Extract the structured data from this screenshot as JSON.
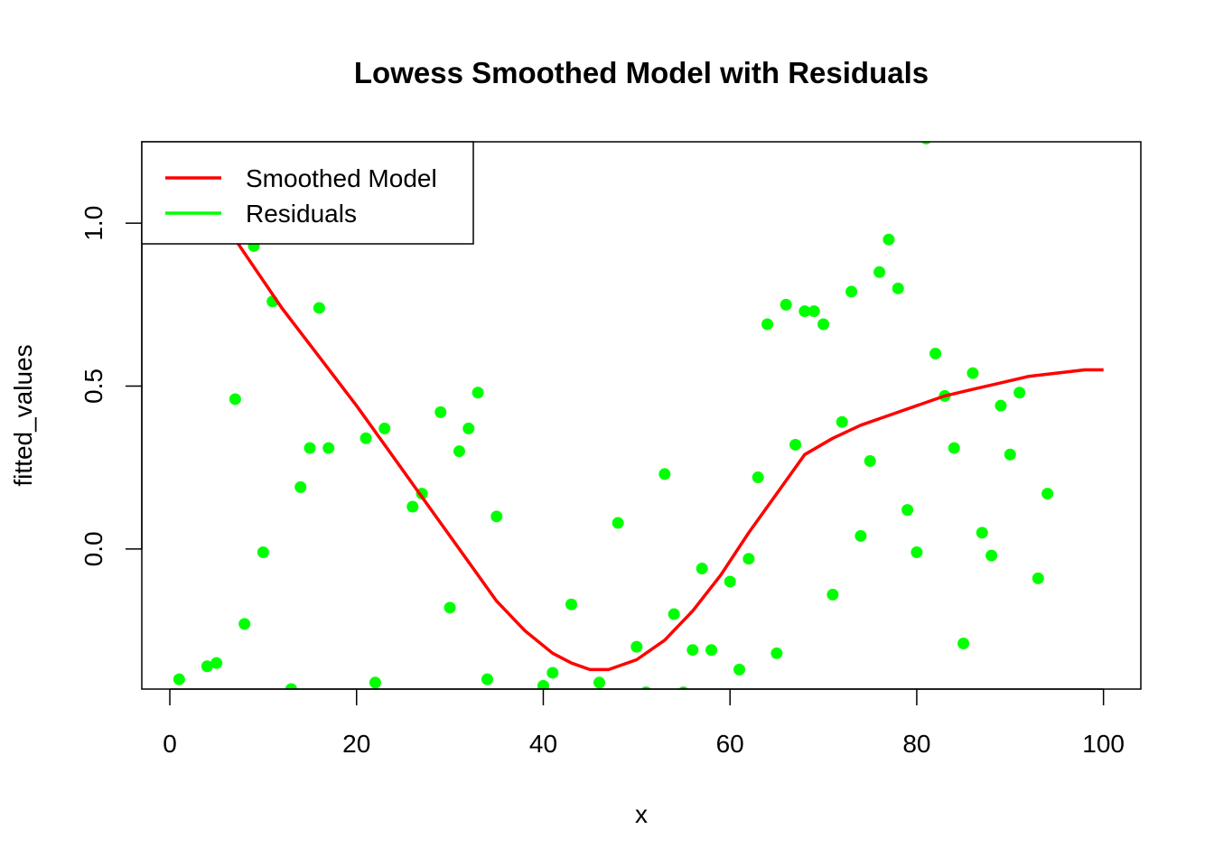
{
  "chart_data": {
    "type": "scatter",
    "title": "Lowess Smoothed Model with Residuals",
    "xlabel": "x",
    "ylabel": "fitted_values",
    "xlim": [
      -3,
      104
    ],
    "ylim": [
      -0.43,
      1.25
    ],
    "x_ticks": [
      0,
      20,
      40,
      60,
      80,
      100
    ],
    "y_ticks": [
      0.0,
      0.5,
      1.0
    ],
    "x_tick_labels": [
      "0",
      "20",
      "40",
      "60",
      "80",
      "100"
    ],
    "y_tick_labels": [
      "0.0",
      "0.5",
      "1.0"
    ],
    "grid": false,
    "legend": {
      "position": "top-left",
      "entries": [
        {
          "label": "Smoothed Model",
          "color": "#ff0000"
        },
        {
          "label": "Residuals",
          "color": "#00ff00"
        }
      ]
    },
    "series": [
      {
        "name": "Smoothed Model",
        "kind": "line",
        "color": "#ff0000",
        "x": [
          7,
          12,
          16,
          20,
          24,
          28,
          32,
          35,
          38,
          41,
          43,
          45,
          47,
          50,
          53,
          56,
          59,
          62,
          65,
          68,
          71,
          74,
          77,
          80,
          83,
          86,
          89,
          92,
          95,
          98,
          100
        ],
        "y": [
          0.95,
          0.74,
          0.59,
          0.44,
          0.28,
          0.12,
          -0.04,
          -0.16,
          -0.25,
          -0.32,
          -0.35,
          -0.37,
          -0.37,
          -0.34,
          -0.28,
          -0.19,
          -0.08,
          0.05,
          0.17,
          0.29,
          0.34,
          0.38,
          0.41,
          0.44,
          0.47,
          0.49,
          0.51,
          0.53,
          0.54,
          0.55,
          0.55
        ]
      },
      {
        "name": "Residuals",
        "kind": "points",
        "color": "#00ff00",
        "x": [
          1,
          4,
          5,
          7,
          8,
          9,
          10,
          11,
          13,
          14,
          15,
          16,
          17,
          21,
          22,
          23,
          26,
          27,
          29,
          30,
          31,
          32,
          33,
          34,
          35,
          40,
          41,
          43,
          46,
          48,
          50,
          51,
          53,
          54,
          55,
          56,
          57,
          58,
          60,
          61,
          62,
          63,
          64,
          65,
          66,
          67,
          68,
          69,
          70,
          71,
          72,
          73,
          74,
          75,
          76,
          77,
          78,
          79,
          80,
          81,
          82,
          83,
          84,
          85,
          86,
          87,
          88,
          89,
          90,
          91,
          93,
          94
        ],
        "y": [
          -0.4,
          -0.36,
          -0.35,
          0.46,
          -0.23,
          0.93,
          -0.01,
          0.76,
          -0.43,
          0.19,
          0.31,
          0.74,
          0.31,
          0.34,
          -0.41,
          0.37,
          0.13,
          0.17,
          0.42,
          -0.18,
          0.3,
          0.37,
          0.48,
          -0.4,
          0.1,
          -0.42,
          -0.38,
          -0.17,
          -0.41,
          0.08,
          -0.3,
          -0.44,
          0.23,
          -0.2,
          -0.44,
          -0.31,
          -0.06,
          -0.31,
          -0.1,
          -0.37,
          -0.03,
          0.22,
          0.69,
          -0.32,
          0.75,
          0.32,
          0.73,
          0.73,
          0.69,
          -0.14,
          0.39,
          0.79,
          0.04,
          0.27,
          0.85,
          0.95,
          0.8,
          0.12,
          -0.01,
          1.26,
          0.6,
          0.47,
          0.31,
          -0.29,
          0.54,
          0.05,
          -0.02,
          0.44,
          0.29,
          0.48,
          -0.09,
          0.17
        ]
      }
    ]
  }
}
